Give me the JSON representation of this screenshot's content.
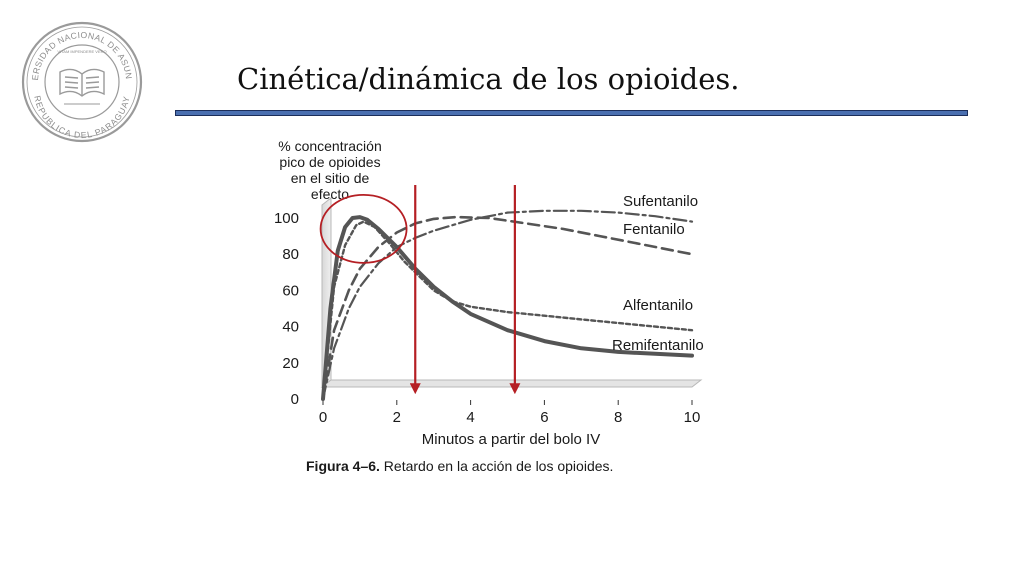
{
  "slide": {
    "title": "Cinética/dinámica de los opioides."
  },
  "logo": {
    "text_top": "UNIVERSIDAD NACIONAL DE ASUNCION",
    "text_bottom": "REPUBLICA DEL PARAGUAY",
    "motto": "VITAM IMPENDERE VERO",
    "icon": "university-seal-book-icon",
    "color": "#9a9a9a"
  },
  "colors": {
    "title_rule": "#4a6fb0",
    "arrow": "#b51f24",
    "circle": "#b51f24",
    "curves": "#555555"
  },
  "chart_data": {
    "type": "line",
    "ylabel": [
      "% concentración",
      "pico de opioides",
      "en el sitio de",
      "efecto"
    ],
    "xlabel": "Minutos a partir del bolo IV",
    "xticks": [
      "0",
      "2",
      "4",
      "6",
      "8",
      "10"
    ],
    "yticks": [
      "0",
      "20",
      "40",
      "60",
      "80",
      "100"
    ],
    "xlim": [
      0,
      10
    ],
    "ylim": [
      0,
      100
    ],
    "caption_bold": "Figura 4–6.",
    "caption_text": " Retardo en la acción de los opioides.",
    "series": [
      {
        "name": "Sufentanilo",
        "style": "dashdot",
        "x": [
          0,
          0.3,
          0.7,
          1,
          1.5,
          2,
          2.5,
          3,
          4,
          5,
          6,
          7,
          8,
          9,
          10
        ],
        "y": [
          0,
          28,
          50,
          62,
          75,
          84,
          89,
          93,
          99,
          103,
          104,
          104,
          103,
          101,
          98
        ]
      },
      {
        "name": "Fentanilo",
        "style": "dashed",
        "x": [
          0,
          0.3,
          0.7,
          1,
          1.5,
          2,
          2.5,
          3,
          3.6,
          4.5,
          5.5,
          6.5,
          7.5,
          8.5,
          9.5,
          10
        ],
        "y": [
          0,
          38,
          60,
          72,
          84,
          92,
          97,
          99.5,
          100.5,
          100,
          97,
          94,
          90,
          86,
          82,
          80
        ]
      },
      {
        "name": "Alfentanilo",
        "style": "dotted",
        "x": [
          0,
          0.3,
          0.6,
          0.9,
          1.1,
          1.4,
          1.8,
          2.2,
          2.6,
          3,
          3.5,
          4,
          5,
          6,
          7,
          8,
          9,
          10
        ],
        "y": [
          0,
          62,
          85,
          96,
          98,
          95,
          86,
          76,
          68,
          60,
          54,
          51,
          48,
          46,
          44,
          42,
          40,
          38
        ]
      },
      {
        "name": "Remifentanilo",
        "style": "solid",
        "x": [
          0,
          0.2,
          0.4,
          0.6,
          0.8,
          1,
          1.2,
          1.5,
          2,
          2.5,
          3,
          3.5,
          4,
          5,
          6,
          7,
          8,
          9,
          10
        ],
        "y": [
          0,
          50,
          82,
          95,
          100,
          100.5,
          99,
          94,
          84,
          72,
          62,
          54,
          47,
          38,
          32,
          28,
          26,
          25,
          24
        ]
      }
    ],
    "annotations": {
      "arrows_x": [
        2.5,
        5.2
      ],
      "circle_center": [
        1.1,
        94
      ]
    }
  }
}
